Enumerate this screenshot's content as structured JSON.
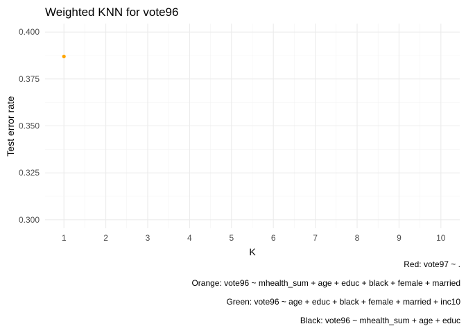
{
  "chart_data": {
    "type": "scatter",
    "title": "Weighted KNN for vote96",
    "xlabel": "K",
    "ylabel": "Test error rate",
    "xlim": [
      0.55,
      10.45
    ],
    "ylim": [
      0.2955,
      0.4045
    ],
    "x_ticks": [
      1,
      2,
      3,
      4,
      5,
      6,
      7,
      8,
      9,
      10
    ],
    "y_ticks": [
      0.3,
      0.325,
      0.35,
      0.375,
      0.4
    ],
    "y_tick_labels": [
      "0.300",
      "0.325",
      "0.350",
      "0.375",
      "0.400"
    ],
    "grid": true,
    "legend": "none",
    "series": [
      {
        "color": "#FFA500",
        "points": [
          {
            "x": 1,
            "y": 0.387
          }
        ]
      }
    ],
    "captions": [
      "Red: vote97 ~ .",
      "Orange: vote96 ~ mhealth_sum + age + educ + black + female + married",
      "Green: vote96 ~ age + educ + black + female + married + inc10",
      "Black: vote96 ~ mhealth_sum + age + educ"
    ]
  }
}
